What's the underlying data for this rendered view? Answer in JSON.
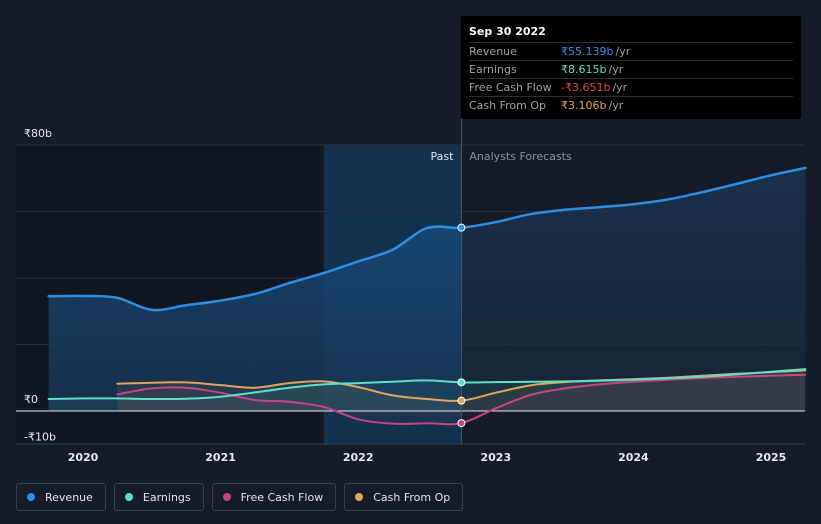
{
  "colors": {
    "revenue": "#2d8ee3",
    "earnings": "#5ce0c8",
    "fcf": "#c4457f",
    "cfo": "#e0a55a",
    "background": "#151b28"
  },
  "tooltip": {
    "date": "Sep 30 2022",
    "rows": [
      {
        "label": "Revenue",
        "value": "₹55.139b",
        "unit": "/yr",
        "color": "#2d8ee3"
      },
      {
        "label": "Earnings",
        "value": "₹8.615b",
        "unit": "/yr",
        "color": "#5ce0c8"
      },
      {
        "label": "Free Cash Flow",
        "value": "-₹3.651b",
        "unit": "/yr",
        "color": "#e04848"
      },
      {
        "label": "Cash From Op",
        "value": "₹3.106b",
        "unit": "/yr",
        "color": "#e0a55a"
      }
    ]
  },
  "legend": [
    {
      "label": "Revenue",
      "color": "#2d8ee3"
    },
    {
      "label": "Earnings",
      "color": "#5ce0c8"
    },
    {
      "label": "Free Cash Flow",
      "color": "#c4457f"
    },
    {
      "label": "Cash From Op",
      "color": "#e0a55a"
    }
  ],
  "chart_data": {
    "type": "line",
    "y_unit": "₹ billions",
    "ylim": [
      -10,
      80
    ],
    "y_tick_labels": [
      {
        "value": 80,
        "label": "₹80b"
      },
      {
        "value": 0,
        "label": "₹0"
      },
      {
        "value": -10,
        "label": "-₹10b"
      }
    ],
    "x_range": [
      2019.6,
      2025.25
    ],
    "x_ticks": [
      2020,
      2021,
      2022,
      2023,
      2024,
      2025
    ],
    "x_tick_labels": [
      "2020",
      "2021",
      "2022",
      "2023",
      "2024",
      "2025"
    ],
    "divider_x": 2022.75,
    "highlight_start_x": 2021.75,
    "past_label": "Past",
    "forecast_label": "Analysts Forecasts",
    "grid": true,
    "series": [
      {
        "name": "Revenue",
        "key": "revenue",
        "points": [
          [
            2019.75,
            34.5
          ],
          [
            2020.0,
            34.6
          ],
          [
            2020.25,
            34.0
          ],
          [
            2020.5,
            30.4
          ],
          [
            2020.75,
            31.8
          ],
          [
            2021.0,
            33.2
          ],
          [
            2021.25,
            35.2
          ],
          [
            2021.5,
            38.5
          ],
          [
            2021.75,
            41.5
          ],
          [
            2022.0,
            45.0
          ],
          [
            2022.25,
            48.5
          ],
          [
            2022.5,
            55.0
          ],
          [
            2022.75,
            55.139
          ],
          [
            2023.0,
            56.8
          ],
          [
            2023.25,
            59.2
          ],
          [
            2023.5,
            60.5
          ],
          [
            2023.75,
            61.3
          ],
          [
            2024.0,
            62.2
          ],
          [
            2024.25,
            63.6
          ],
          [
            2024.5,
            65.8
          ],
          [
            2024.75,
            68.3
          ],
          [
            2025.0,
            70.9
          ],
          [
            2025.25,
            73.1
          ]
        ]
      },
      {
        "name": "Earnings",
        "key": "earnings",
        "points": [
          [
            2019.75,
            3.6
          ],
          [
            2020.0,
            3.8
          ],
          [
            2020.25,
            3.8
          ],
          [
            2020.5,
            3.6
          ],
          [
            2020.75,
            3.7
          ],
          [
            2021.0,
            4.3
          ],
          [
            2021.25,
            5.6
          ],
          [
            2021.5,
            7.0
          ],
          [
            2021.75,
            8.0
          ],
          [
            2022.0,
            8.4
          ],
          [
            2022.25,
            8.8
          ],
          [
            2022.5,
            9.2
          ],
          [
            2022.75,
            8.615
          ],
          [
            2023.0,
            8.7
          ],
          [
            2023.25,
            8.8
          ],
          [
            2023.5,
            8.9
          ],
          [
            2023.75,
            9.1
          ],
          [
            2024.0,
            9.4
          ],
          [
            2024.25,
            9.8
          ],
          [
            2024.5,
            10.3
          ],
          [
            2024.75,
            11.0
          ],
          [
            2025.0,
            11.8
          ],
          [
            2025.25,
            12.6
          ]
        ]
      },
      {
        "name": "Free Cash Flow",
        "key": "fcf",
        "points": [
          [
            2020.25,
            5.0
          ],
          [
            2020.5,
            6.8
          ],
          [
            2020.75,
            7.0
          ],
          [
            2021.0,
            5.5
          ],
          [
            2021.25,
            3.3
          ],
          [
            2021.5,
            2.8
          ],
          [
            2021.75,
            1.2
          ],
          [
            2022.0,
            -2.5
          ],
          [
            2022.25,
            -3.8
          ],
          [
            2022.5,
            -3.7
          ],
          [
            2022.75,
            -3.651
          ],
          [
            2023.0,
            0.8
          ],
          [
            2023.25,
            4.8
          ],
          [
            2023.5,
            6.8
          ],
          [
            2023.75,
            8.0
          ],
          [
            2024.0,
            8.8
          ],
          [
            2024.25,
            9.4
          ],
          [
            2024.5,
            9.9
          ],
          [
            2024.75,
            10.3
          ],
          [
            2025.0,
            10.6
          ],
          [
            2025.25,
            10.9
          ]
        ]
      },
      {
        "name": "Cash From Op",
        "key": "cfo",
        "points": [
          [
            2020.25,
            8.2
          ],
          [
            2020.5,
            8.5
          ],
          [
            2020.75,
            8.6
          ],
          [
            2021.0,
            7.8
          ],
          [
            2021.25,
            7.0
          ],
          [
            2021.5,
            8.4
          ],
          [
            2021.75,
            8.9
          ],
          [
            2022.0,
            7.2
          ],
          [
            2022.25,
            4.7
          ],
          [
            2022.5,
            3.6
          ],
          [
            2022.75,
            3.106
          ],
          [
            2023.0,
            5.5
          ],
          [
            2023.25,
            7.7
          ],
          [
            2023.5,
            8.7
          ],
          [
            2023.75,
            9.2
          ],
          [
            2024.0,
            9.6
          ],
          [
            2024.25,
            10.0
          ],
          [
            2024.5,
            10.6
          ],
          [
            2024.75,
            11.2
          ],
          [
            2025.0,
            11.7
          ],
          [
            2025.25,
            12.2
          ]
        ]
      }
    ]
  }
}
